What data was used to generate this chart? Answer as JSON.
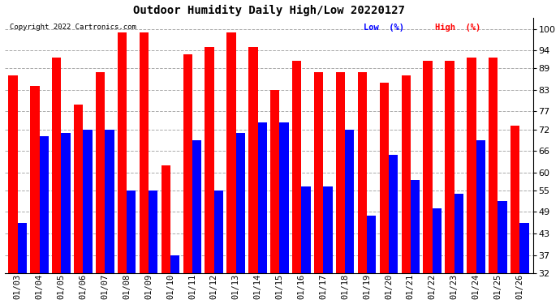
{
  "title": "Outdoor Humidity Daily High/Low 20220127",
  "copyright": "Copyright 2022 Cartronics.com",
  "legend_low": "Low  (%)",
  "legend_high": "High  (%)",
  "dates": [
    "01/03",
    "01/04",
    "01/05",
    "01/06",
    "01/07",
    "01/08",
    "01/09",
    "01/10",
    "01/11",
    "01/12",
    "01/13",
    "01/14",
    "01/15",
    "01/16",
    "01/17",
    "01/18",
    "01/19",
    "01/20",
    "01/21",
    "01/22",
    "01/23",
    "01/24",
    "01/25",
    "01/26"
  ],
  "high": [
    87,
    84,
    92,
    79,
    88,
    99,
    99,
    62,
    93,
    95,
    99,
    95,
    83,
    91,
    88,
    88,
    88,
    85,
    87,
    91,
    91,
    92,
    92,
    73
  ],
  "low": [
    46,
    70,
    71,
    72,
    72,
    55,
    55,
    37,
    69,
    55,
    71,
    74,
    74,
    56,
    56,
    72,
    48,
    65,
    58,
    50,
    54,
    69,
    52,
    46
  ],
  "high_color": "#ff0000",
  "low_color": "#0000ff",
  "bg_color": "#ffffff",
  "plot_bg": "#ffffff",
  "grid_color": "#aaaaaa",
  "yticks": [
    32,
    37,
    43,
    49,
    55,
    60,
    66,
    72,
    77,
    83,
    89,
    94,
    100
  ],
  "ylim": [
    32,
    103
  ],
  "ymin": 32,
  "bar_width": 0.42
}
